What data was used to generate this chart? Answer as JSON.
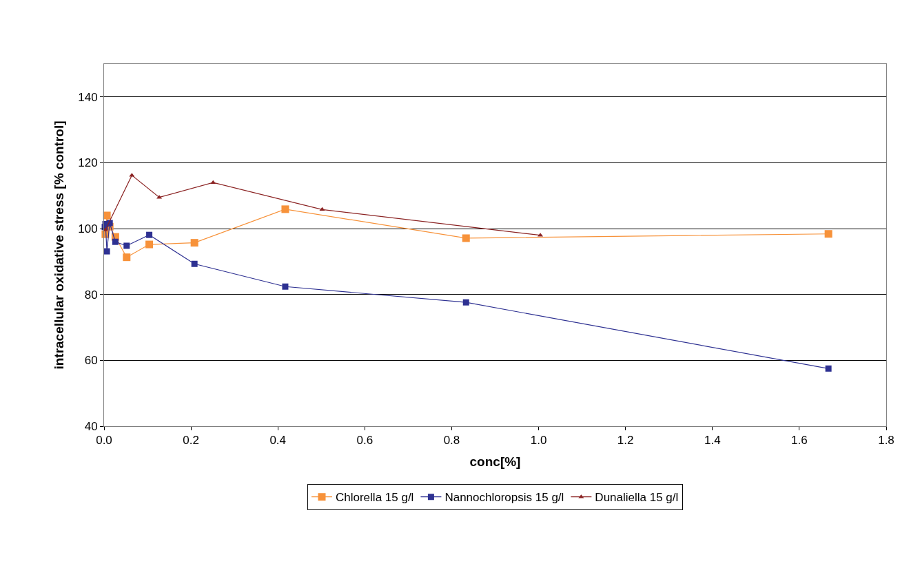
{
  "chart_data": {
    "type": "line",
    "xlabel": "conc[%]",
    "ylabel": "intracellular oxidative stress [% control]",
    "xlim": [
      0,
      1.8
    ],
    "xticks": [
      {
        "value": 0,
        "label": "0.0"
      },
      0.2,
      0.4,
      0.6,
      0.8,
      {
        "value": 1,
        "label": "1.0"
      },
      1.2,
      1.4,
      1.6,
      1.8
    ],
    "ylim": [
      40,
      150
    ],
    "yticks": [
      40,
      60,
      80,
      100,
      120,
      140
    ],
    "grid": "y",
    "legend": "bottom",
    "series": [
      {
        "name": "Chlorella 15 g/l",
        "color": "#f7923a",
        "marker": "square",
        "x": [
          0.003,
          0.0065,
          0.013,
          0.026,
          0.052,
          0.104,
          0.208,
          0.417,
          0.833,
          1.667
        ],
        "values": [
          98.3,
          104,
          100.6,
          97.5,
          91.3,
          95.2,
          95.7,
          105.9,
          97.1,
          98.4
        ]
      },
      {
        "name": "Nannochloropsis 15 g/l",
        "color": "#2e3192",
        "marker": "square",
        "x": [
          0.0016,
          0.0033,
          0.0065,
          0.013,
          0.026,
          0.052,
          0.104,
          0.208,
          0.417,
          0.833,
          1.667
        ],
        "values": [
          100.5,
          101.4,
          93.1,
          101.7,
          96,
          94.8,
          98.1,
          89.3,
          82.4,
          77.6,
          57.5
        ]
      },
      {
        "name": "Dunaliella 15 g/l",
        "color": "#8b2323",
        "marker": "triangle",
        "x": [
          0.003,
          0.064,
          0.127,
          0.251,
          0.502,
          1.004
        ],
        "values": [
          99.6,
          116.2,
          109.5,
          114,
          105.8,
          98
        ]
      }
    ]
  }
}
